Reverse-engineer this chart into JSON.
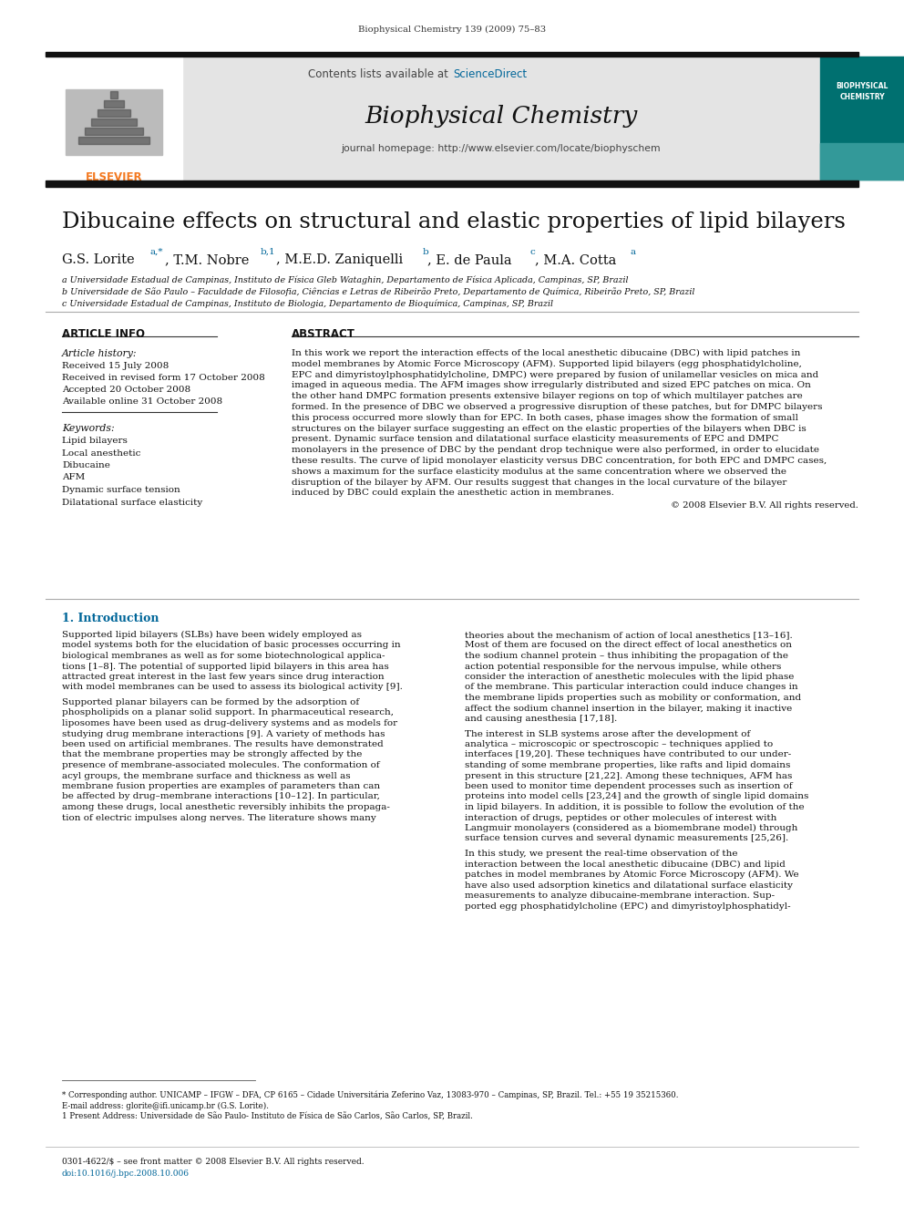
{
  "journal_info": "Biophysical Chemistry 139 (2009) 75–83",
  "contents_text": "Contents lists available at ",
  "sciencedirect_text": "ScienceDirect",
  "journal_name": "Biophysical Chemistry",
  "journal_homepage": "journal homepage: http://www.elsevier.com/locate/biophyschem",
  "paper_title": "Dibucaine effects on structural and elastic properties of lipid bilayers",
  "affil_a": "a Universidade Estadual de Campinas, Instituto de Física Gleb Wataghin, Departamento de Física Aplicada, Campinas, SP, Brazil",
  "affil_b": "b Universidade de São Paulo – Faculdade de Filosofia, Ciências e Letras de Ribeirão Preto, Departamento de Química, Ribeirão Preto, SP, Brazil",
  "affil_c": "c Universidade Estadual de Campinas, Instituto de Biologia, Departamento de Bioquímica, Campinas, SP, Brazil",
  "article_info_title": "ARTICLE INFO",
  "abstract_title": "ABSTRACT",
  "article_history_label": "Article history:",
  "received": "Received 15 July 2008",
  "received_revised": "Received in revised form 17 October 2008",
  "accepted": "Accepted 20 October 2008",
  "available": "Available online 31 October 2008",
  "keywords_label": "Keywords:",
  "keywords": [
    "Lipid bilayers",
    "Local anesthetic",
    "Dibucaine",
    "AFM",
    "Dynamic surface tension",
    "Dilatational surface elasticity"
  ],
  "abstract_lines": [
    "In this work we report the interaction effects of the local anesthetic dibucaine (DBC) with lipid patches in",
    "model membranes by Atomic Force Microscopy (AFM). Supported lipid bilayers (egg phosphatidylcholine,",
    "EPC and dimyristoylphosphatidylcholine, DMPC) were prepared by fusion of unilamellar vesicles on mica and",
    "imaged in aqueous media. The AFM images show irregularly distributed and sized EPC patches on mica. On",
    "the other hand DMPC formation presents extensive bilayer regions on top of which multilayer patches are",
    "formed. In the presence of DBC we observed a progressive disruption of these patches, but for DMPC bilayers",
    "this process occurred more slowly than for EPC. In both cases, phase images show the formation of small",
    "structures on the bilayer surface suggesting an effect on the elastic properties of the bilayers when DBC is",
    "present. Dynamic surface tension and dilatational surface elasticity measurements of EPC and DMPC",
    "monolayers in the presence of DBC by the pendant drop technique were also performed, in order to elucidate",
    "these results. The curve of lipid monolayer elasticity versus DBC concentration, for both EPC and DMPC cases,",
    "shows a maximum for the surface elasticity modulus at the same concentration where we observed the",
    "disruption of the bilayer by AFM. Our results suggest that changes in the local curvature of the bilayer",
    "induced by DBC could explain the anesthetic action in membranes."
  ],
  "copyright": "© 2008 Elsevier B.V. All rights reserved.",
  "intro_title": "1. Introduction",
  "intro_col1_lines": [
    "Supported lipid bilayers (SLBs) have been widely employed as",
    "model systems both for the elucidation of basic processes occurring in",
    "biological membranes as well as for some biotechnological applica-",
    "tions [1–8]. The potential of supported lipid bilayers in this area has",
    "attracted great interest in the last few years since drug interaction",
    "with model membranes can be used to assess its biological activity [9].",
    "",
    "Supported planar bilayers can be formed by the adsorption of",
    "phospholipids on a planar solid support. In pharmaceutical research,",
    "liposomes have been used as drug-delivery systems and as models for",
    "studying drug membrane interactions [9]. A variety of methods has",
    "been used on artificial membranes. The results have demonstrated",
    "that the membrane properties may be strongly affected by the",
    "presence of membrane-associated molecules. The conformation of",
    "acyl groups, the membrane surface and thickness as well as",
    "membrane fusion properties are examples of parameters than can",
    "be affected by drug–membrane interactions [10–12]. In particular,",
    "among these drugs, local anesthetic reversibly inhibits the propaga-",
    "tion of electric impulses along nerves. The literature shows many"
  ],
  "intro_col2_lines": [
    "theories about the mechanism of action of local anesthetics [13–16].",
    "Most of them are focused on the direct effect of local anesthetics on",
    "the sodium channel protein – thus inhibiting the propagation of the",
    "action potential responsible for the nervous impulse, while others",
    "consider the interaction of anesthetic molecules with the lipid phase",
    "of the membrane. This particular interaction could induce changes in",
    "the membrane lipids properties such as mobility or conformation, and",
    "affect the sodium channel insertion in the bilayer, making it inactive",
    "and causing anesthesia [17,18].",
    "",
    "The interest in SLB systems arose after the development of",
    "analytica – microscopic or spectroscopic – techniques applied to",
    "interfaces [19,20]. These techniques have contributed to our under-",
    "standing of some membrane properties, like rafts and lipid domains",
    "present in this structure [21,22]. Among these techniques, AFM has",
    "been used to monitor time dependent processes such as insertion of",
    "proteins into model cells [23,24] and the growth of single lipid domains",
    "in lipid bilayers. In addition, it is possible to follow the evolution of the",
    "interaction of drugs, peptides or other molecules of interest with",
    "Langmuir monolayers (considered as a biomembrane model) through",
    "surface tension curves and several dynamic measurements [25,26].",
    "",
    "In this study, we present the real-time observation of the",
    "interaction between the local anesthetic dibucaine (DBC) and lipid",
    "patches in model membranes by Atomic Force Microscopy (AFM). We",
    "have also used adsorption kinetics and dilatational surface elasticity",
    "measurements to analyze dibucaine-membrane interaction. Sup-",
    "ported egg phosphatidylcholine (EPC) and dimyristoylphosphatidyl-"
  ],
  "footnote1": "* Corresponding author. UNICAMP – IFGW – DFA, CP 6165 – Cidade Universitária Zeferino Vaz, 13083-970 – Campinas, SP, Brazil. Tel.: +55 19 35215360.",
  "footnote2": "E-mail address: glorite@ifi.unicamp.br (G.S. Lorite).",
  "footnote3": "1 Present Address: Universidade de São Paulo- Instituto de Física de São Carlos, São Carlos, SP, Brazil.",
  "bottom_line1": "0301-4622/$ – see front matter © 2008 Elsevier B.V. All rights reserved.",
  "bottom_line2": "doi:10.1016/j.bpc.2008.10.006",
  "bg_color": "#ffffff",
  "header_bg": "#e4e4e4",
  "elsevier_orange": "#f47920",
  "sciencedirect_blue": "#006699",
  "dark_bar": "#111111",
  "teal_cover": "#007070"
}
